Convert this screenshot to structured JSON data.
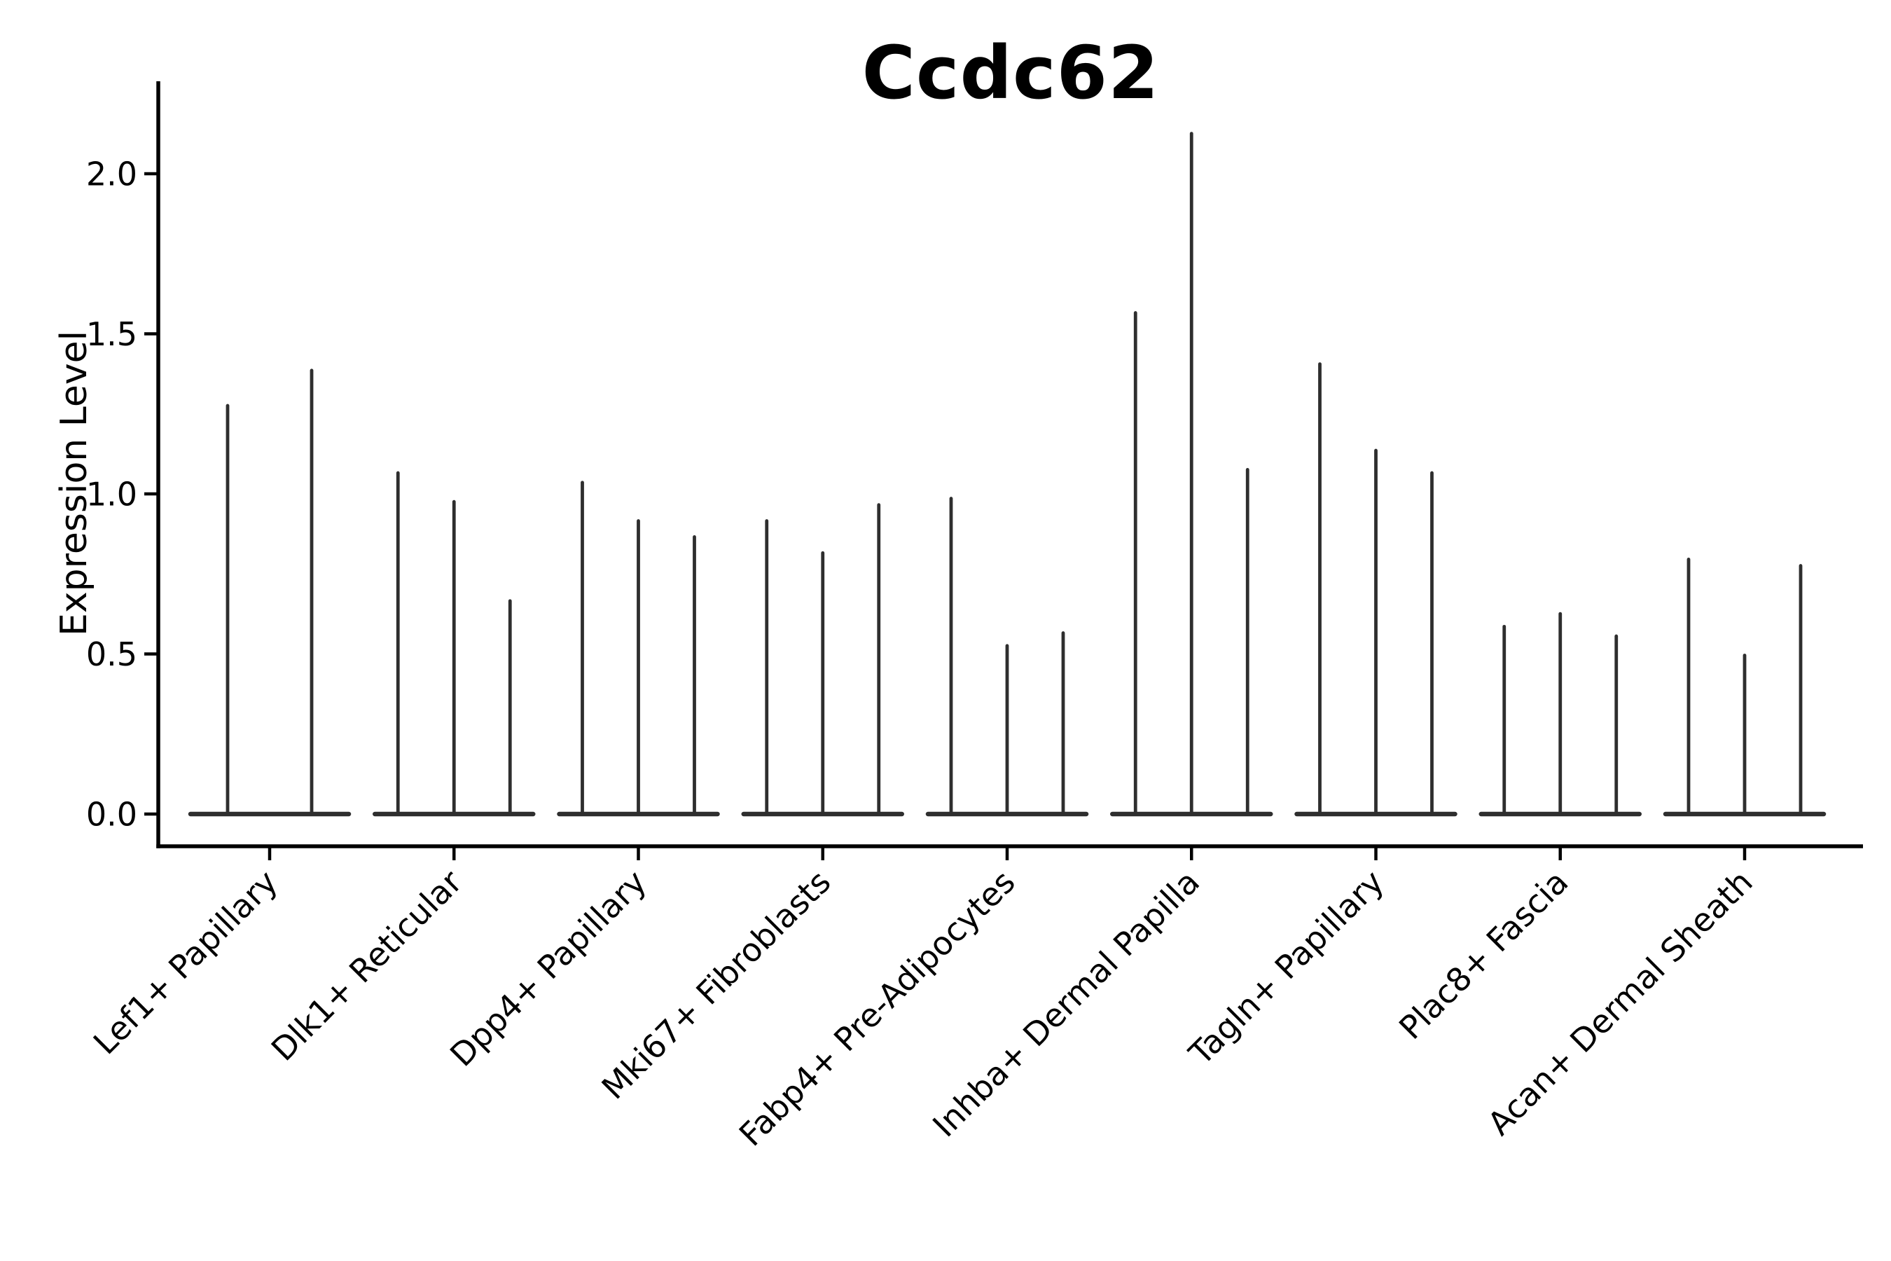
{
  "chart_data": {
    "type": "violin",
    "title": "Ccdc62",
    "xlabel": "",
    "ylabel": "Expression Level",
    "grid": false,
    "legend": "none",
    "ylim": [
      -0.1,
      2.28
    ],
    "ytick_labels": [
      "0.0",
      "0.5",
      "1.0",
      "1.5",
      "2.0"
    ],
    "ytick_values": [
      0.0,
      0.5,
      1.0,
      1.5,
      2.0
    ],
    "categories": [
      "Lef1+ Papillary",
      "Dlk1+ Reticular",
      "Dpp4+ Papillary",
      "Mki67+ Fibroblasts",
      "Fabp4+ Pre-Adipocytes",
      "Inhba+ Dermal Papilla",
      "Tagln+ Papillary",
      "Plac8+ Fascia",
      "Acan+ Dermal Sheath"
    ],
    "series": [
      {
        "category": "Lef1+ Papillary",
        "violin_peaks": [
          1.28,
          1.39
        ]
      },
      {
        "category": "Dlk1+ Reticular",
        "violin_peaks": [
          1.07,
          0.98,
          0.67
        ]
      },
      {
        "category": "Dpp4+ Papillary",
        "violin_peaks": [
          1.04,
          0.92,
          0.87
        ]
      },
      {
        "category": "Mki67+ Fibroblasts",
        "violin_peaks": [
          0.92,
          0.82,
          0.97
        ]
      },
      {
        "category": "Fabp4+ Pre-Adipocytes",
        "violin_peaks": [
          0.99,
          0.53,
          0.57
        ]
      },
      {
        "category": "Inhba+ Dermal Papilla",
        "violin_peaks": [
          1.57,
          2.13,
          1.08
        ]
      },
      {
        "category": "Tagln+ Papillary",
        "violin_peaks": [
          1.41,
          1.14,
          1.07
        ]
      },
      {
        "category": "Plac8+ Fascia",
        "violin_peaks": [
          0.59,
          0.63,
          0.56
        ]
      },
      {
        "category": "Acan+ Dermal Sheath",
        "violin_peaks": [
          0.8,
          0.5,
          0.78
        ]
      }
    ],
    "violin_style": "collapsed-thin-spikes-with-flat-base",
    "colors": {
      "violin": "#2e2e2e",
      "axis": "#000000",
      "text": "#000000",
      "background": "#ffffff"
    }
  }
}
